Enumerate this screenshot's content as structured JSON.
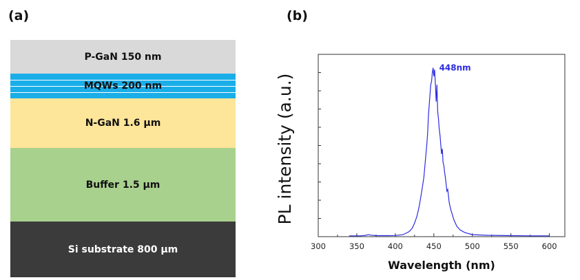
{
  "panel_a": {
    "label": "(a)",
    "layers": [
      {
        "label": "P-GaN 150 nm",
        "color": "#d9d9d9"
      },
      {
        "label": "MQWs 200 nm",
        "color": "#1aaee8"
      },
      {
        "label": "N-GaN 1.6 μm",
        "color": "#fde59a"
      },
      {
        "label": "Buffer 1.5 μm",
        "color": "#a9d18e"
      },
      {
        "label": "Si substrate 800 μm",
        "color": "#3b3b3b",
        "text_color": "#ffffff"
      }
    ]
  },
  "panel_b": {
    "label": "(b)"
  },
  "chart_data": {
    "type": "line",
    "title": "",
    "xlabel": "Wavelength (nm)",
    "ylabel": "PL intensity (a.u.)",
    "xlim": [
      300,
      620
    ],
    "ylim": [
      0,
      1.08
    ],
    "xticks": [
      300,
      350,
      400,
      450,
      500,
      550,
      600
    ],
    "y_minor_ticks": 9,
    "y_tick_labels_shown": false,
    "grid": false,
    "legend": "none",
    "line_color": "#2b2be0",
    "annotations": [
      {
        "text": "448nm",
        "x": 448,
        "y": 1.0,
        "color": "#2b2be0"
      }
    ],
    "series": [
      {
        "x": [
          340,
          355,
          362,
          365,
          368,
          375,
          390,
          400,
          410,
          418,
          422,
          425,
          428,
          431,
          434,
          437,
          439,
          441,
          442,
          443,
          444,
          445,
          446,
          447,
          448,
          449,
          450,
          451,
          452,
          453,
          454,
          455,
          456,
          457,
          458,
          460,
          461,
          462,
          463,
          464,
          465,
          467,
          468,
          470,
          472,
          474,
          476,
          478,
          480,
          484,
          490,
          500,
          520,
          550,
          580,
          600
        ],
        "values": [
          0.005,
          0.005,
          0.008,
          0.012,
          0.009,
          0.006,
          0.006,
          0.007,
          0.012,
          0.03,
          0.05,
          0.08,
          0.12,
          0.18,
          0.26,
          0.35,
          0.45,
          0.55,
          0.62,
          0.72,
          0.78,
          0.84,
          0.9,
          0.92,
          0.97,
          1.0,
          0.95,
          0.99,
          0.91,
          0.8,
          0.9,
          0.74,
          0.7,
          0.64,
          0.6,
          0.49,
          0.52,
          0.44,
          0.42,
          0.38,
          0.35,
          0.27,
          0.28,
          0.2,
          0.16,
          0.13,
          0.1,
          0.08,
          0.06,
          0.04,
          0.025,
          0.012,
          0.008,
          0.006,
          0.005,
          0.005
        ]
      }
    ]
  }
}
